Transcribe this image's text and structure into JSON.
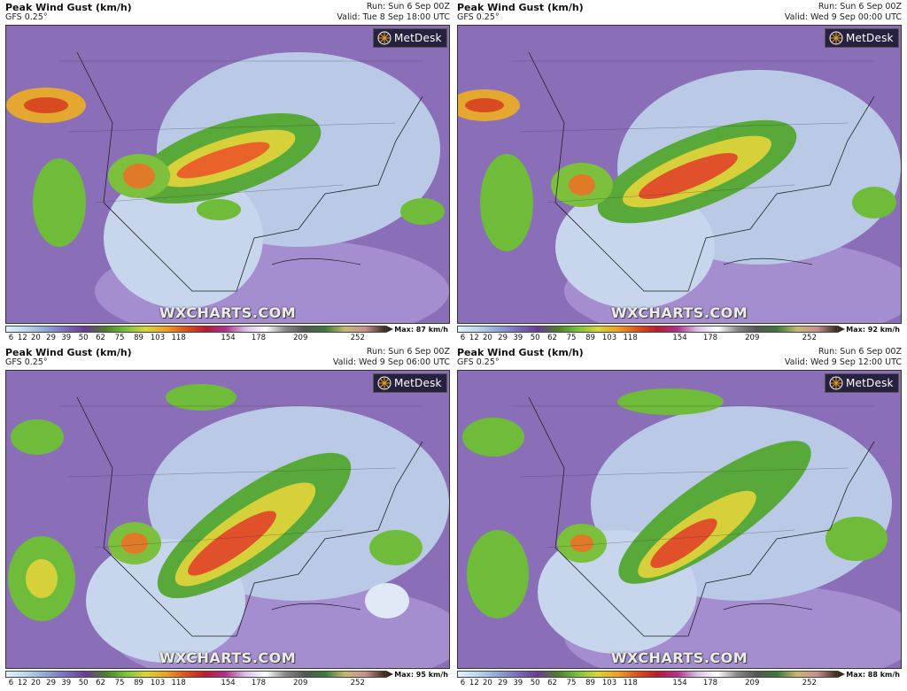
{
  "panels": [
    {
      "title": "Peak Wind Gust (km/h)",
      "model": "GFS 0.25°",
      "run": "Run: Sun 6 Sep 00Z",
      "valid": "Valid: Tue 8 Sep 18:00 UTC",
      "max": "Max: 87 km/h"
    },
    {
      "title": "Peak Wind Gust (km/h)",
      "model": "GFS 0.25°",
      "run": "Run: Sun 6 Sep 00Z",
      "valid": "Valid: Wed 9 Sep 00:00 UTC",
      "max": "Max: 92 km/h"
    },
    {
      "title": "Peak Wind Gust (km/h)",
      "model": "GFS 0.25°",
      "run": "Run: Sun 6 Sep 00Z",
      "valid": "Valid: Wed 9 Sep 06:00 UTC",
      "max": "Max: 95 km/h"
    },
    {
      "title": "Peak Wind Gust (km/h)",
      "model": "GFS 0.25°",
      "run": "Run: Sun 6 Sep 00Z",
      "valid": "Valid: Wed 9 Sep 12:00 UTC",
      "max": "Max: 88 km/h"
    }
  ],
  "brand": "MetDesk",
  "watermark": "WXCHARTS.COM",
  "colorbar_ticks": [
    "6",
    "12",
    "20",
    "29",
    "39",
    "50",
    "62",
    "75",
    "89",
    "103",
    "118",
    "154",
    "178",
    "209",
    "252"
  ],
  "colorbar_colors": [
    "#dff3fb",
    "#b9d7ee",
    "#8fa6d6",
    "#7a6bbd",
    "#6b3b93",
    "#4b7f2a",
    "#79c23a",
    "#d8d834",
    "#f0a020",
    "#e05018",
    "#c01830",
    "#b03090",
    "#d9c0e8",
    "#ffffff",
    "#888888",
    "#555555",
    "#3a7a3a",
    "#c8b870",
    "#c89090",
    "#3a2a1a"
  ]
}
